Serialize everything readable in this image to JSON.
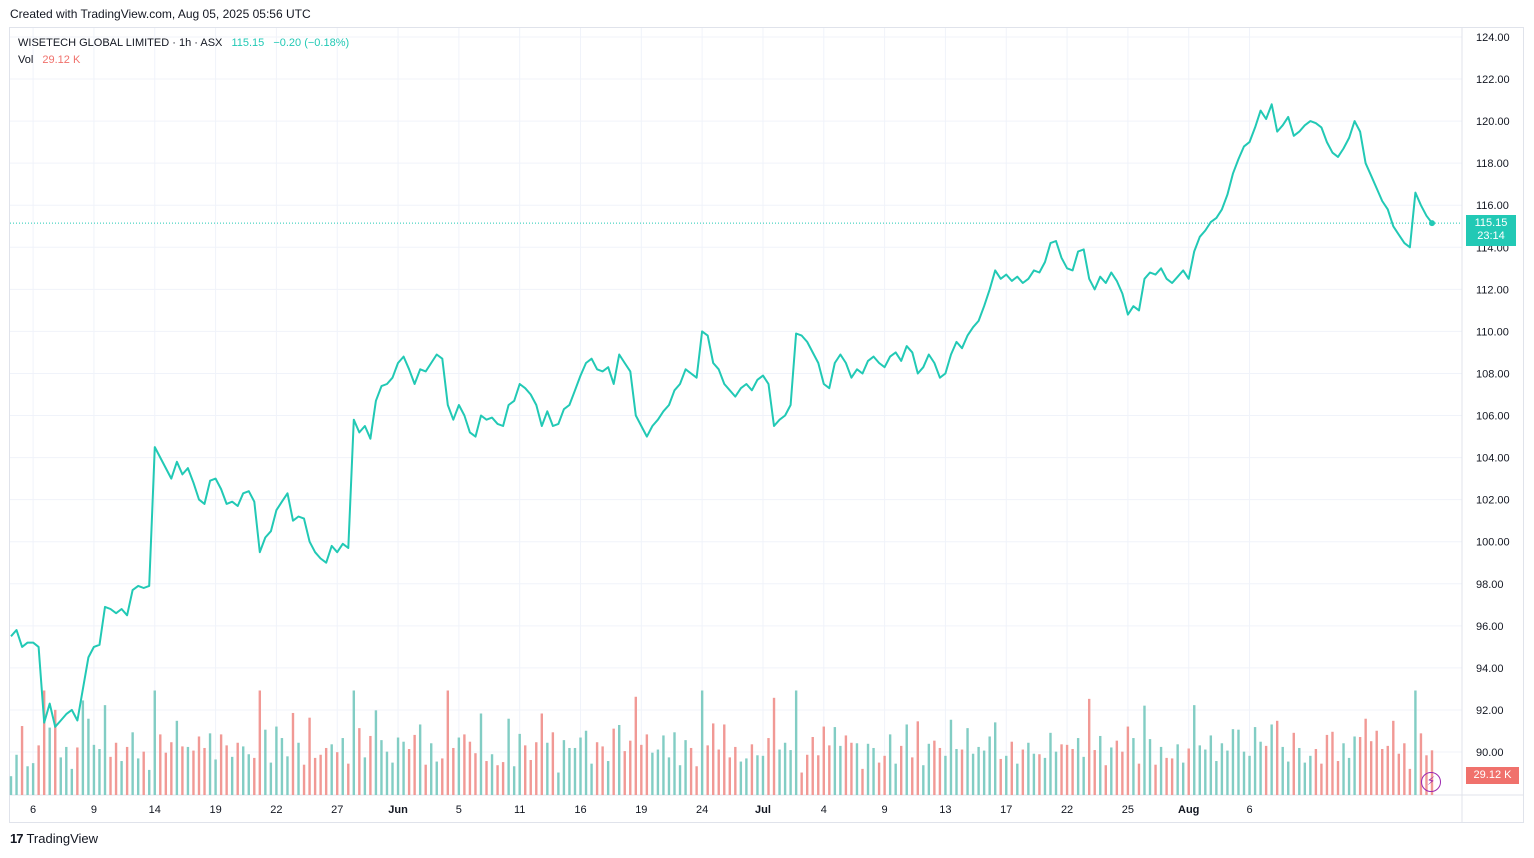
{
  "header": {
    "created_text": "Created with TradingView.com, Aug 05, 2025 05:56 UTC"
  },
  "legend": {
    "symbol": "WISETECH GLOBAL LIMITED · 1h · ASX",
    "price": "115.15",
    "change": "−0.20 (−0.18%)",
    "vol_label": "Vol",
    "vol_value": "29.12 K"
  },
  "price_tag": {
    "price": "115.15",
    "countdown": "23:14"
  },
  "volume_tag": {
    "value": "29.12 K"
  },
  "footer": {
    "brand": "TradingView"
  },
  "colors": {
    "line": "#22c9b5",
    "up_volume": "#82cdc4",
    "down_volume": "#f19995",
    "grid": "#f0f3fa"
  },
  "chart_data": {
    "type": "line",
    "ylim": [
      89,
      125
    ],
    "y_ticks": [
      "124.00",
      "122.00",
      "120.00",
      "118.00",
      "116.00",
      "114.00",
      "112.00",
      "110.00",
      "108.00",
      "106.00",
      "104.00",
      "102.00",
      "100.00",
      "98.00",
      "96.00",
      "94.00",
      "92.00",
      "90.00"
    ],
    "x_ticks": [
      "6",
      "9",
      "14",
      "19",
      "22",
      "27",
      "Jun",
      "5",
      "11",
      "16",
      "19",
      "24",
      "Jul",
      "4",
      "9",
      "13",
      "17",
      "22",
      "25",
      "Aug",
      "6"
    ],
    "x_tick_index": [
      4,
      15,
      26,
      37,
      48,
      59,
      70,
      81,
      92,
      103,
      114,
      125,
      136,
      147,
      158,
      169,
      180,
      191,
      202,
      213,
      224
    ],
    "last_price": 115.15,
    "series": [
      {
        "values": [
          95.5,
          95.8,
          95.0,
          95.2,
          95.2,
          95.0,
          91.4,
          92.3,
          91.2,
          91.5,
          91.8,
          92.0,
          91.5,
          93.0,
          94.5,
          95.0,
          95.1,
          96.9,
          96.8,
          96.6,
          96.8,
          96.5,
          97.7,
          97.9,
          97.8,
          97.9,
          104.5,
          104.0,
          103.5,
          103.0,
          103.8,
          103.2,
          103.5,
          102.8,
          102.0,
          101.8,
          102.9,
          103.0,
          102.5,
          101.8,
          101.9,
          101.7,
          102.3,
          102.4,
          101.9,
          99.5,
          100.2,
          100.5,
          101.5,
          101.9,
          102.3,
          101.0,
          101.2,
          101.1,
          100.0,
          99.5,
          99.2,
          99.0,
          99.8,
          99.5,
          99.9,
          99.7,
          105.8,
          105.2,
          105.5,
          104.9,
          106.7,
          107.4,
          107.5,
          107.8,
          108.5,
          108.8,
          108.2,
          107.5,
          108.2,
          108.1,
          108.5,
          108.9,
          108.7,
          106.5,
          105.8,
          106.5,
          106.0,
          105.2,
          105.0,
          106.0,
          105.8,
          105.9,
          105.6,
          105.5,
          106.5,
          106.7,
          107.5,
          107.3,
          107.0,
          106.5,
          105.5,
          106.2,
          105.5,
          105.6,
          106.3,
          106.5,
          107.2,
          107.9,
          108.5,
          108.7,
          108.2,
          108.1,
          108.3,
          107.5,
          108.9,
          108.5,
          108.1,
          106.0,
          105.5,
          105.0,
          105.5,
          105.8,
          106.2,
          106.5,
          107.2,
          107.5,
          108.2,
          108.0,
          107.8,
          110.0,
          109.8,
          108.5,
          108.2,
          107.5,
          107.2,
          106.9,
          107.3,
          107.5,
          107.2,
          107.7,
          107.9,
          107.5,
          105.5,
          105.8,
          106.0,
          106.5,
          109.9,
          109.8,
          109.5,
          109.0,
          108.5,
          107.5,
          107.3,
          108.5,
          108.9,
          108.5,
          107.8,
          108.2,
          108.0,
          108.6,
          108.8,
          108.5,
          108.3,
          108.8,
          109.0,
          108.6,
          109.3,
          109.0,
          108.0,
          108.3,
          108.9,
          108.5,
          107.8,
          108.0,
          108.9,
          109.5,
          109.2,
          109.8,
          110.2,
          110.5,
          111.2,
          112.0,
          112.9,
          112.5,
          112.7,
          112.4,
          112.6,
          112.3,
          112.5,
          112.9,
          112.8,
          113.3,
          114.2,
          114.3,
          113.5,
          113.0,
          112.9,
          113.8,
          113.9,
          112.5,
          112.0,
          112.6,
          112.3,
          112.8,
          112.4,
          111.8,
          110.8,
          111.2,
          111.0,
          112.5,
          112.8,
          112.7,
          113.0,
          112.5,
          112.3,
          112.6,
          112.9,
          112.5,
          113.8,
          114.5,
          114.8,
          115.2,
          115.4,
          115.8,
          116.5,
          117.5,
          118.2,
          118.8,
          119.0,
          119.7,
          120.5,
          120.1,
          120.8,
          119.5,
          119.8,
          120.2,
          119.3,
          119.5,
          119.8,
          120.0,
          119.9,
          119.7,
          119.0,
          118.5,
          118.3,
          118.7,
          119.2,
          120.0,
          119.5,
          118.0,
          117.4,
          116.8,
          116.2,
          115.8,
          115.0,
          114.6,
          114.2,
          114.0,
          116.6,
          116.0,
          115.5,
          115.15
        ]
      }
    ],
    "volume_label": "Vol"
  }
}
